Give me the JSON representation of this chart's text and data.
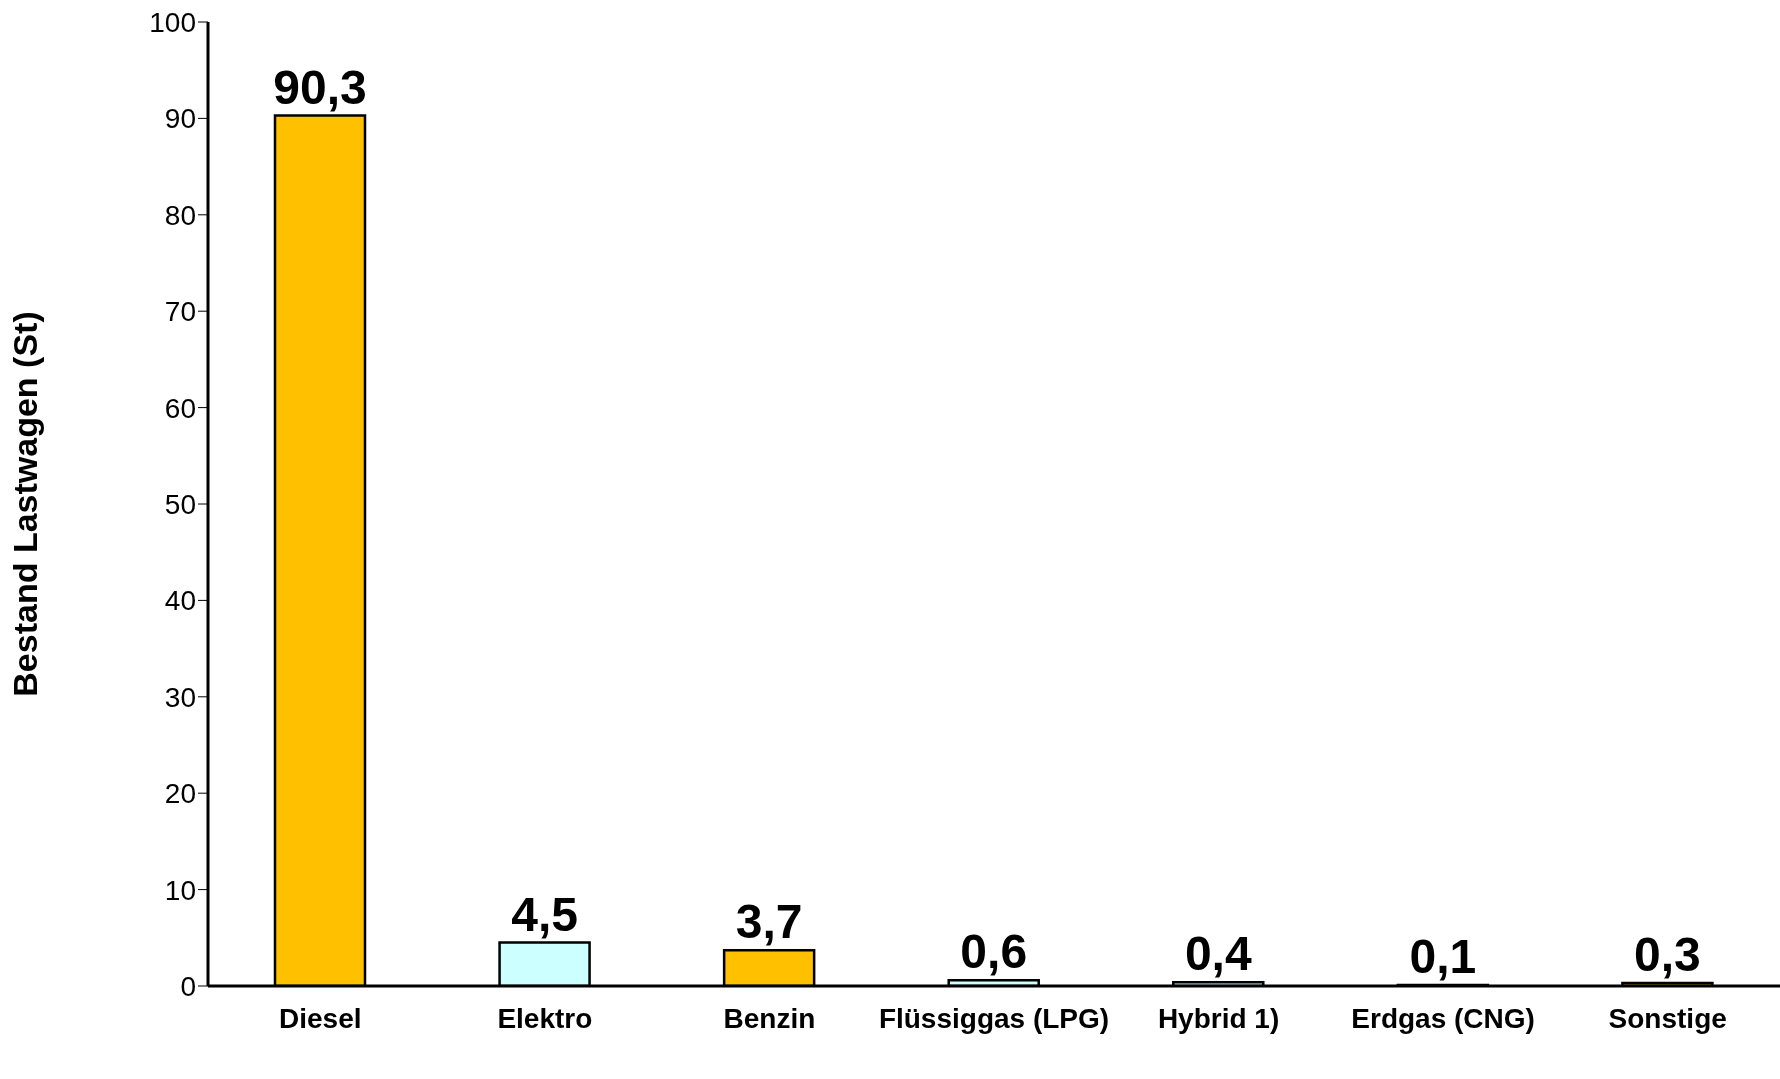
{
  "chart_data": {
    "type": "bar",
    "ylabel": "Bestand Lastwagen (St)",
    "categories": [
      "Diesel",
      "Elektro",
      "Benzin",
      "Flüssiggas (LPG)",
      "Hybrid 1)",
      "Erdgas (CNG)",
      "Sonstige"
    ],
    "values": [
      90.3,
      4.5,
      3.7,
      0.6,
      0.4,
      0.1,
      0.3
    ],
    "value_labels": [
      "90,3",
      "4,5",
      "3,7",
      "0,6",
      "0,4",
      "0,1",
      "0,3"
    ],
    "colors": [
      "#ffc000",
      "#ccffff",
      "#ffc000",
      "#ccffff",
      "#ccffff",
      "#ffc000",
      "#ffc000"
    ],
    "ylim": [
      0,
      100
    ],
    "yticks": [
      0,
      10,
      20,
      30,
      40,
      50,
      60,
      70,
      80,
      90,
      100
    ],
    "grid": false,
    "legend": false
  }
}
